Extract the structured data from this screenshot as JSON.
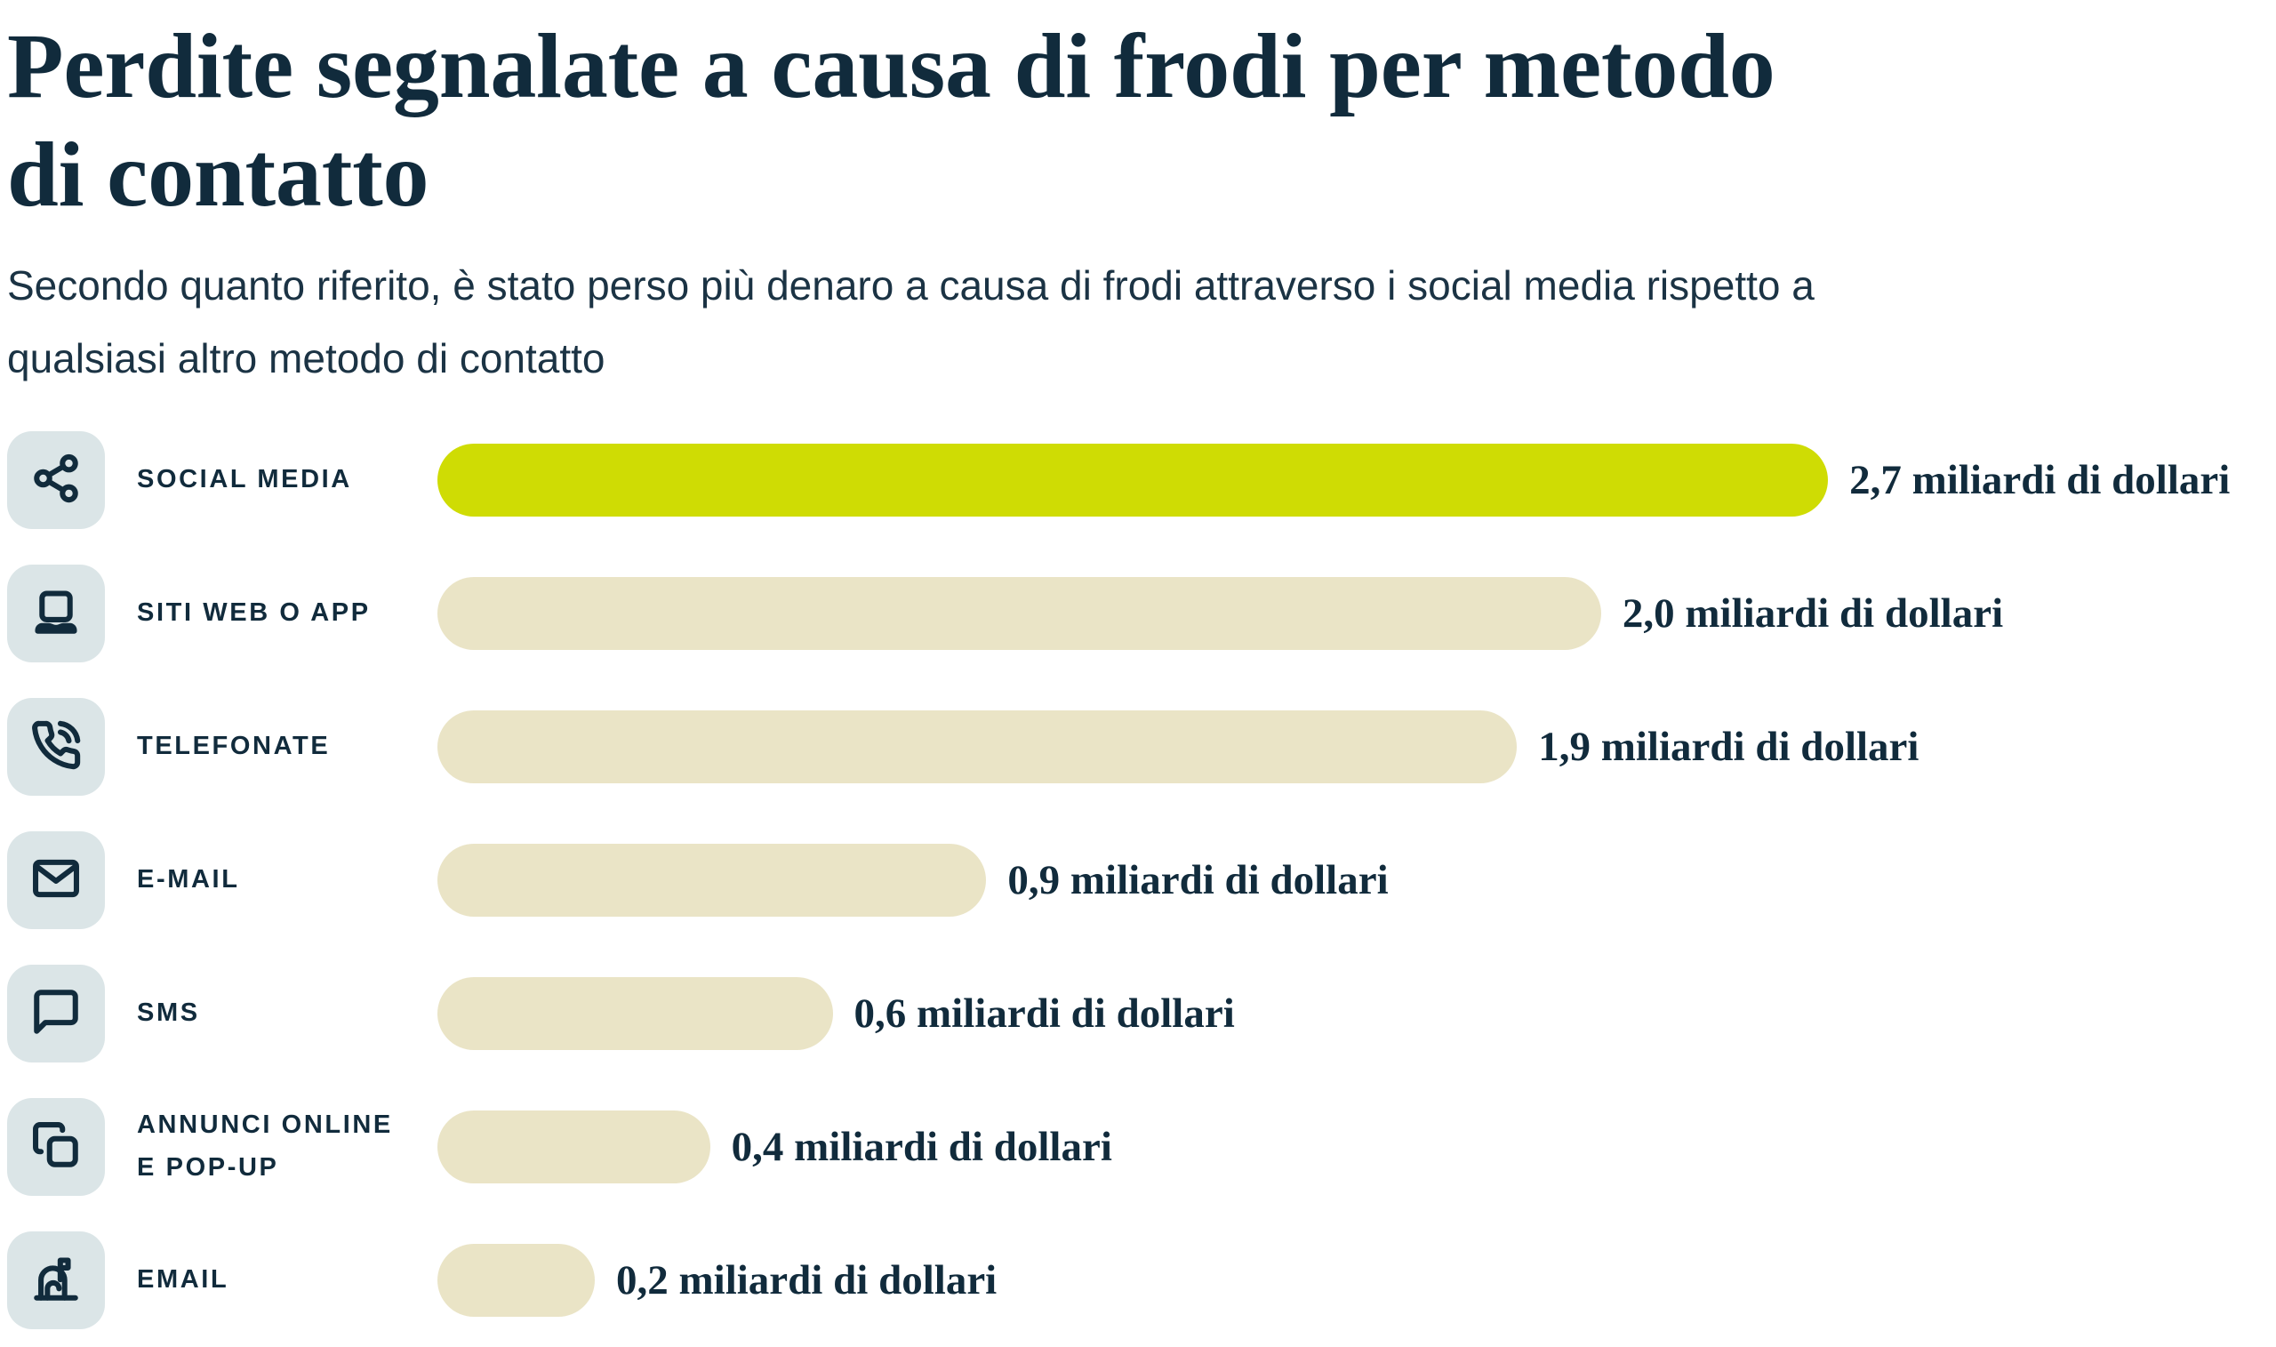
{
  "page": {
    "title": "Perdite segnalate a causa di frodi per metodo\ndi contatto",
    "subtitle": "Secondo quanto riferito, è stato perso più denaro a causa di frodi attraverso i social media rispetto a\nqualsiasi altro metodo di contatto"
  },
  "colors": {
    "navy": "#112B3C",
    "highlight_bar": "#CFDC04",
    "default_bar": "#EAE4C6",
    "icon_background": "#DBE5E7",
    "page_background": "#FFFFFF"
  },
  "chart_data": {
    "type": "bar",
    "orientation": "horizontal",
    "title": "Perdite segnalate a causa di frodi per metodo di contatto",
    "subtitle": "Secondo quanto riferito, è stato perso più denaro a causa di frodi attraverso i social media rispetto a qualsiasi altro metodo di contatto",
    "unit": "miliardi di dollari",
    "axis": "none",
    "legend": "none",
    "grid": false,
    "highlight_index": 0,
    "categories": [
      "SOCIAL MEDIA",
      "SITI WEB O APP",
      "TELEFONATE",
      "E-MAIL",
      "SMS",
      "ANNUNCI ONLINE\nE POP-UP",
      "EMAIL"
    ],
    "values": [
      2.7,
      2.0,
      1.9,
      0.9,
      0.6,
      0.4,
      0.2
    ],
    "rows": [
      {
        "category": "SOCIAL MEDIA",
        "icon": "share-icon",
        "value": 2.7,
        "value_label": "2,7 miliardi di dollari",
        "highlighted": true,
        "bar_width_pct": 76.0
      },
      {
        "category": "SITI WEB O APP",
        "icon": "laptop-icon",
        "value": 2.0,
        "value_label": "2,0 miliardi di dollari",
        "highlighted": false,
        "bar_width_pct": 63.6
      },
      {
        "category": "TELEFONATE",
        "icon": "phone-call-icon",
        "value": 1.9,
        "value_label": "1,9 miliardi di dollari",
        "highlighted": false,
        "bar_width_pct": 59.0
      },
      {
        "category": "E-MAIL",
        "icon": "envelope-icon",
        "value": 0.9,
        "value_label": "0,9 miliardi di dollari",
        "highlighted": false,
        "bar_width_pct": 30.0
      },
      {
        "category": "SMS",
        "icon": "chat-bubble-icon",
        "value": 0.6,
        "value_label": "0,6 miliardi di dollari",
        "highlighted": false,
        "bar_width_pct": 21.6
      },
      {
        "category": "ANNUNCI ONLINE\nE POP-UP",
        "icon": "copy-icon",
        "value": 0.4,
        "value_label": "0,4 miliardi di dollari",
        "highlighted": false,
        "bar_width_pct": 14.9
      },
      {
        "category": "EMAIL",
        "icon": "mailbox-icon",
        "value": 0.2,
        "value_label": "0,2 miliardi di dollari",
        "highlighted": false,
        "bar_width_pct": 8.6
      }
    ]
  }
}
